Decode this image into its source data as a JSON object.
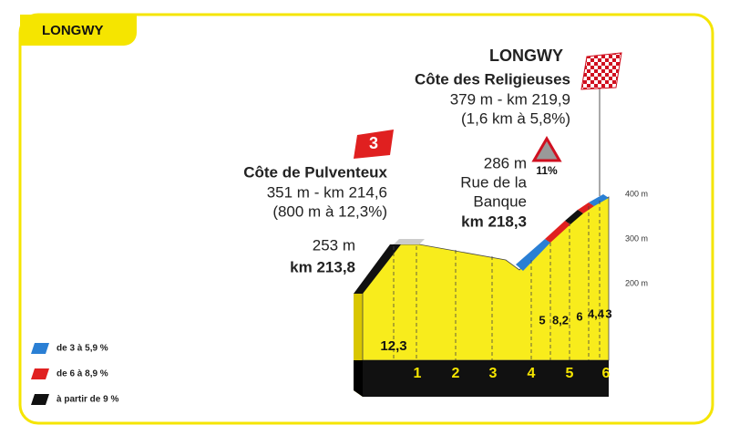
{
  "header": {
    "title": "LONGWY"
  },
  "finish": {
    "name": "LONGWY",
    "climb": "Côte des Religieuses",
    "info": "379 m - km 219,9",
    "gradient": "(1,6 km à 5,8%)"
  },
  "climb1": {
    "category": "3",
    "name": "Côte de Pulventeux",
    "info": "351 m - km 214,6",
    "gradient": "(800 m à 12,3%)"
  },
  "start_point": {
    "altitude": "253 m",
    "km": "km 213,8"
  },
  "point2": {
    "altitude": "286 m",
    "name_line1": "Rue de la",
    "name_line2": "Banque",
    "km": "km 218,3",
    "warning": "11%"
  },
  "altitude_axis": [
    "400 m",
    "300 m",
    "200 m"
  ],
  "segment_gradients": [
    "12,3",
    "5",
    "8,2",
    "6",
    "4,4",
    "3"
  ],
  "km_markers": [
    "1",
    "2",
    "3",
    "4",
    "5",
    "6"
  ],
  "legend": [
    "de 3 à 5,9 %",
    "de 6 à 8,9 %",
    "à partir de 9 %"
  ]
}
